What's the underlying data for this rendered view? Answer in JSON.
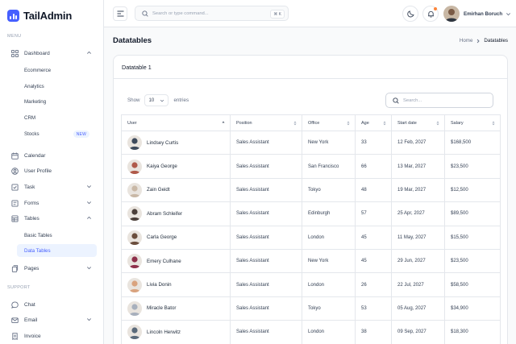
{
  "app": {
    "name": "TailAdmin",
    "brand_color": "#465fff"
  },
  "sidebar": {
    "menu_label": "MENU",
    "support_label": "SUPPORT",
    "dashboard": {
      "label": "Dashboard",
      "icon": "grid-icon"
    },
    "dashboard_items": [
      {
        "label": "Ecommerce"
      },
      {
        "label": "Analytics"
      },
      {
        "label": "Marketing"
      },
      {
        "label": "CRM"
      },
      {
        "label": "Stocks",
        "badge": "NEW"
      }
    ],
    "calendar": {
      "label": "Calendar",
      "icon": "calendar-icon"
    },
    "profile": {
      "label": "User Profile",
      "icon": "user-circle-icon"
    },
    "task": {
      "label": "Task",
      "icon": "task-icon"
    },
    "forms": {
      "label": "Forms",
      "icon": "forms-icon"
    },
    "tables": {
      "label": "Tables",
      "icon": "table-icon"
    },
    "tables_items": [
      {
        "label": "Basic Tables"
      },
      {
        "label": "Data Tables",
        "active": true
      }
    ],
    "pages": {
      "label": "Pages",
      "icon": "pages-icon"
    },
    "chat": {
      "label": "Chat",
      "icon": "chat-icon"
    },
    "email": {
      "label": "Email",
      "icon": "mail-icon"
    },
    "invoice": {
      "label": "Invoice",
      "icon": "invoice-icon"
    }
  },
  "header": {
    "search_placeholder": "Search or type command...",
    "shortcut": "⌘ K",
    "user_name": "Emirhan Boruch"
  },
  "page": {
    "title": "Datatables",
    "breadcrumb_home": "Home",
    "breadcrumb_current": "Datatables"
  },
  "card": {
    "title": "Datatable 1",
    "show_label": "Show",
    "entries_value": "10",
    "entries_label": "entries",
    "search_placeholder": "Search..."
  },
  "table": {
    "columns": [
      "User",
      "Position",
      "Office",
      "Age",
      "Start date",
      "Salary"
    ],
    "rows": [
      {
        "name": "Lindsey Curtis",
        "position": "Sales Assistant",
        "office": "New York",
        "age": "33",
        "start": "12 Feb, 2027",
        "salary": "$168,500",
        "avatar_bg": "#3d4a5c"
      },
      {
        "name": "Kaiya George",
        "position": "Sales Assistant",
        "office": "San Francisco",
        "age": "66",
        "start": "13 Mar, 2027",
        "salary": "$23,500",
        "avatar_bg": "#b05a4a"
      },
      {
        "name": "Zain Geidt",
        "position": "Sales Assistant",
        "office": "Tokyo",
        "age": "48",
        "start": "19 Mar, 2027",
        "salary": "$12,500",
        "avatar_bg": "#c9b8a6"
      },
      {
        "name": "Abram Schleifer",
        "position": "Sales Assistant",
        "office": "Edinburgh",
        "age": "57",
        "start": "25 Apr, 2027",
        "salary": "$89,500",
        "avatar_bg": "#4b3f3a"
      },
      {
        "name": "Carla George",
        "position": "Sales Assistant",
        "office": "London",
        "age": "45",
        "start": "11 May, 2027",
        "salary": "$15,500",
        "avatar_bg": "#6b4e3d"
      },
      {
        "name": "Emery Culhane",
        "position": "Sales Assistant",
        "office": "New York",
        "age": "45",
        "start": "29 Jun, 2027",
        "salary": "$23,500",
        "avatar_bg": "#8e2f4a"
      },
      {
        "name": "Livia Donin",
        "position": "Sales Assistant",
        "office": "London",
        "age": "26",
        "start": "22 Jul, 2027",
        "salary": "$58,500",
        "avatar_bg": "#d9a37e"
      },
      {
        "name": "Miracle Bator",
        "position": "Sales Assistant",
        "office": "Tokyo",
        "age": "53",
        "start": "05 Aug, 2027",
        "salary": "$34,900",
        "avatar_bg": "#a8b0bd"
      },
      {
        "name": "Lincoln Herwitz",
        "position": "Sales Assistant",
        "office": "London",
        "age": "38",
        "start": "09 Sep, 2027",
        "salary": "$18,300",
        "avatar_bg": "#5a6a7a"
      }
    ]
  }
}
